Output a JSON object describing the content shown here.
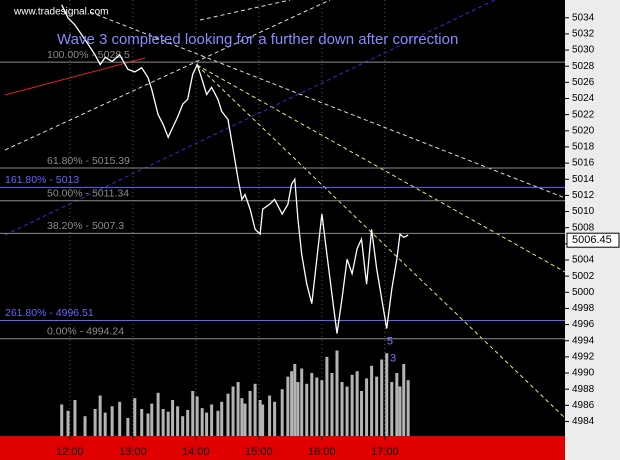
{
  "chart_data": {
    "type": "line",
    "source": "www.tradesignal.com",
    "title": "Wave 3 completed looking for a further down after correction",
    "x": [
      11.87,
      11.97,
      12.08,
      12.24,
      12.4,
      12.48,
      12.56,
      12.67,
      12.79,
      12.92,
      13.03,
      13.14,
      13.24,
      13.3,
      13.4,
      13.48,
      13.56,
      13.63,
      13.71,
      13.79,
      13.87,
      13.95,
      14.02,
      14.1,
      14.17,
      14.25,
      14.35,
      14.41,
      14.51,
      14.59,
      14.67,
      14.73,
      14.78,
      14.86,
      14.94,
      15.02,
      15.06,
      15.17,
      15.25,
      15.37,
      15.46,
      15.52,
      15.57,
      15.62,
      15.68,
      15.76,
      15.84,
      15.92,
      16.0,
      16.08,
      16.16,
      16.24,
      16.32,
      16.4,
      16.48,
      16.56,
      16.63,
      16.71,
      16.79,
      16.87,
      16.95,
      17.03,
      17.11,
      17.19,
      17.24,
      17.3,
      17.37
    ],
    "values": [
      5035.6,
      5034,
      5033.1,
      5031.3,
      5029.4,
      5028.2,
      5029.1,
      5028.6,
      5029.4,
      5027.6,
      5027.3,
      5027.8,
      5026.6,
      5025.1,
      5022.0,
      5020.8,
      5019.2,
      5020.4,
      5021.7,
      5023.3,
      5023.9,
      5027.0,
      5028.2,
      5026.3,
      5024.5,
      5025.4,
      5023.9,
      5022.4,
      5021.4,
      5017.7,
      5014.0,
      5011.5,
      5012.1,
      5010.3,
      5007.8,
      5007.2,
      5010.3,
      5010.9,
      5011.5,
      5009.7,
      5010.9,
      5013.4,
      5014.0,
      5009.1,
      5004.7,
      5001.0,
      4998.6,
      5004.1,
      5009.7,
      5004.7,
      4999.8,
      4994.9,
      4999.2,
      5004.1,
      5002.3,
      5005.4,
      5006.6,
      5001.0,
      5007.8,
      5002.9,
      4999.2,
      4995.5,
      5000.4,
      5004.1,
      5007.2,
      5006.8,
      5007.1
    ],
    "volume": [
      35,
      28,
      40,
      22,
      30,
      45,
      26,
      33,
      38,
      20,
      42,
      30,
      25,
      36,
      48,
      30,
      27,
      40,
      33,
      22,
      29,
      50,
      44,
      31,
      26,
      35,
      28,
      38,
      47,
      55,
      60,
      42,
      36,
      50,
      58,
      40,
      35,
      45,
      38,
      52,
      66,
      72,
      80,
      60,
      75,
      58,
      70,
      65,
      62,
      88,
      70,
      95,
      60,
      55,
      68,
      72,
      50,
      64,
      78,
      66,
      85,
      92,
      60,
      70,
      55,
      80,
      62
    ],
    "color": "#ffffff",
    "volume_color": "#b4b4b4",
    "vlim": [
      0,
      100
    ],
    "xlim": [
      10.89,
      19.86
    ],
    "ylim": [
      4982.2,
      5036.2
    ],
    "xticks": [
      {
        "value": 12,
        "label": "12:00"
      },
      {
        "value": 13,
        "label": "13:00"
      },
      {
        "value": 14,
        "label": "14:00"
      },
      {
        "value": 15,
        "label": "15:00"
      },
      {
        "value": 16,
        "label": "16:00"
      },
      {
        "value": 17,
        "label": "17:00"
      }
    ],
    "yticks": [
      4984,
      4986,
      4988,
      4990,
      4992,
      4994,
      4996,
      4998,
      5000,
      5002,
      5004,
      5006,
      5008,
      5010,
      5012,
      5014,
      5016,
      5018,
      5020,
      5022,
      5024,
      5026,
      5028,
      5030,
      5032,
      5034
    ],
    "last_price": 5006.45,
    "levels": [
      {
        "value": 5028.5,
        "label": "100.00% - 5028.5",
        "color": "#8c8c8c"
      },
      {
        "value": 5015.39,
        "label": "61.80% - 5015.39",
        "color": "#8c8c8c"
      },
      {
        "value": 5013,
        "label": "161.80% - 5013",
        "color": "#6464ff"
      },
      {
        "value": 5011.34,
        "label": "50.00% - 5011.34",
        "color": "#8c8c8c"
      },
      {
        "value": 5007.3,
        "label": "38.20% - 5007.3",
        "color": "#8c8c8c"
      },
      {
        "value": 4996.51,
        "label": "261.80% - 4996.51",
        "color": "#6464ff"
      },
      {
        "value": 4994.24,
        "label": "0.00% - 4994.24",
        "color": "#8c8c8c"
      }
    ],
    "annotations": [
      {
        "text": "5",
        "x": 17.08,
        "y": 4993.9
      },
      {
        "text": "3",
        "x": 17.13,
        "y": 4991.8
      }
    ],
    "grid": true
  }
}
